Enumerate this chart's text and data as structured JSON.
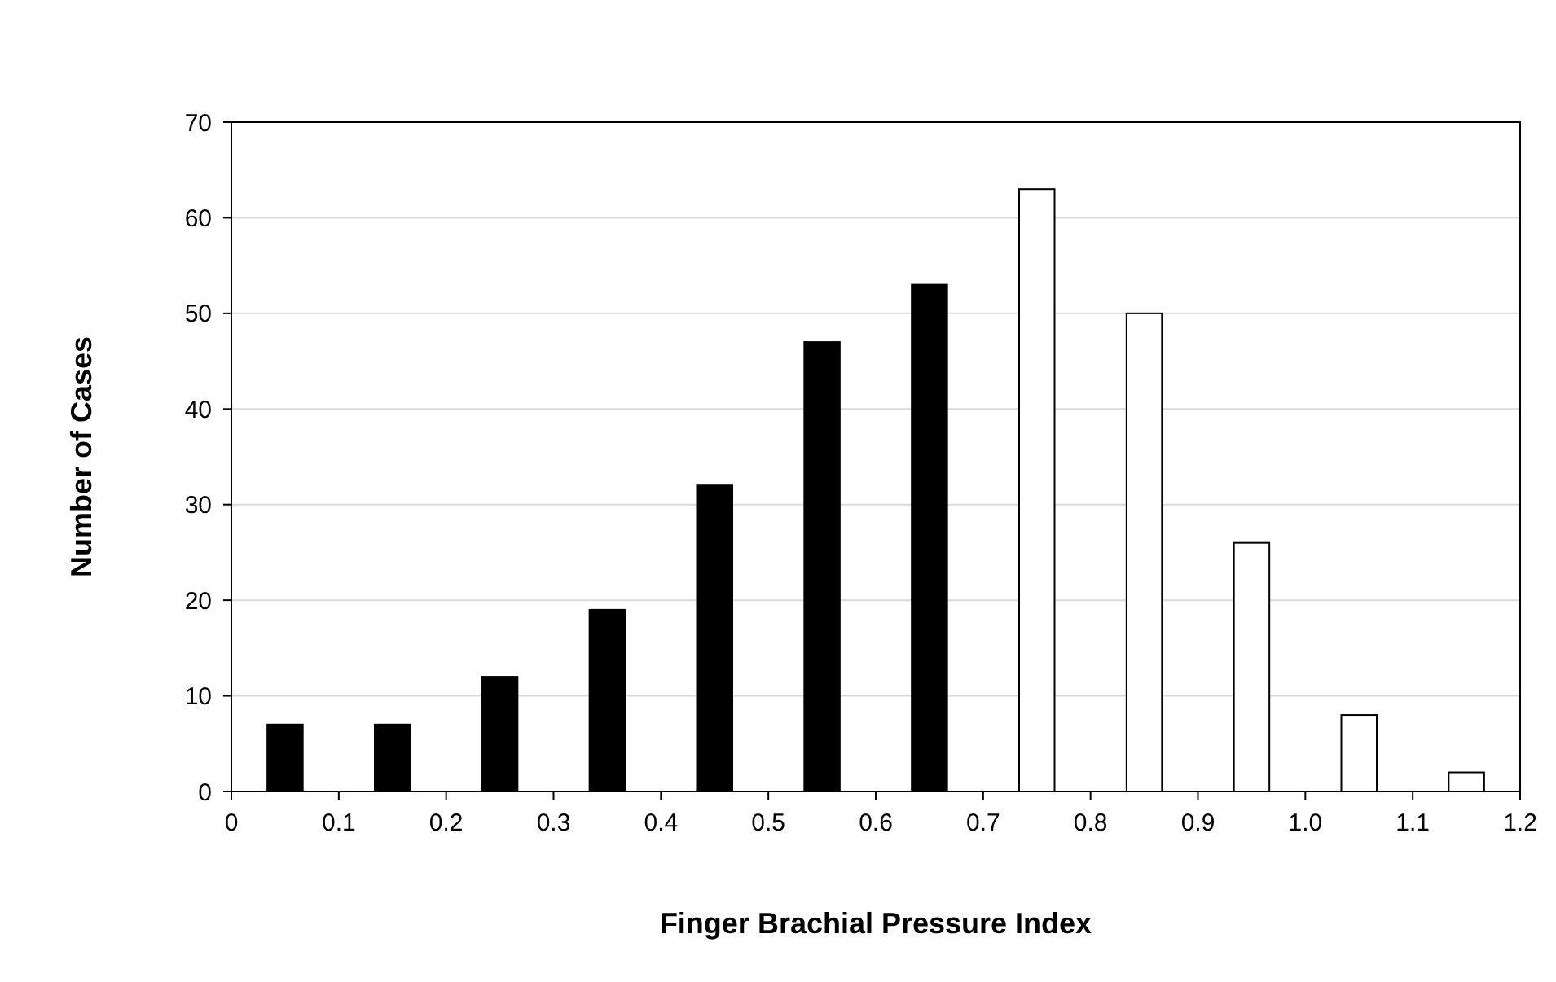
{
  "chart_data": {
    "type": "bar",
    "xlabel": "Finger Brachial Pressure Index",
    "ylabel": "Number of Cases",
    "x": [
      0.05,
      0.15,
      0.25,
      0.35,
      0.45,
      0.55,
      0.65,
      0.75,
      0.85,
      0.95,
      1.05,
      1.15
    ],
    "values": [
      7,
      7,
      12,
      19,
      32,
      47,
      53,
      63,
      50,
      26,
      8,
      2
    ],
    "colors": [
      "#000000",
      "#000000",
      "#000000",
      "#000000",
      "#000000",
      "#000000",
      "#000000",
      "#ffffff",
      "#ffffff",
      "#ffffff",
      "#ffffff",
      "#ffffff"
    ],
    "xlim": [
      0,
      1.2
    ],
    "xticks": [
      0,
      0.1,
      0.2,
      0.3,
      0.4,
      0.5,
      0.6,
      0.7,
      0.8,
      0.9,
      {
        "value": 1,
        "label": "1.0"
      },
      1.1,
      1.2
    ],
    "ylim": [
      0,
      70
    ],
    "yticks": [
      0,
      10,
      20,
      30,
      40,
      50,
      60,
      70
    ],
    "grid": "y"
  }
}
